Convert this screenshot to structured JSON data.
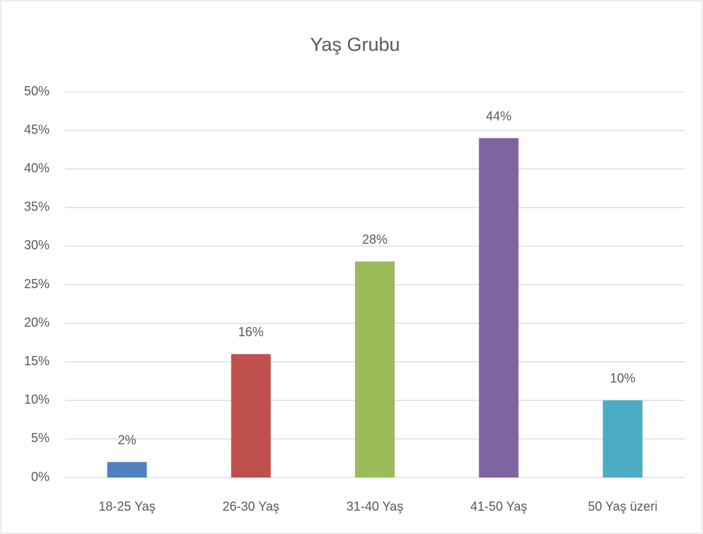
{
  "chart_data": {
    "type": "bar",
    "title": "Yaş Grubu",
    "categories": [
      "18-25 Yaş",
      "26-30 Yaş",
      "31-40 Yaş",
      "41-50 Yaş",
      "50 Yaş üzeri"
    ],
    "values": [
      2,
      16,
      28,
      44,
      10
    ],
    "value_labels": [
      "2%",
      "16%",
      "28%",
      "44%",
      "10%"
    ],
    "colors": [
      "#4f81bd",
      "#c0504d",
      "#9bbb59",
      "#8064a2",
      "#4bacc6"
    ],
    "ylim": [
      0,
      50
    ],
    "yticks": [
      {
        "value": 0,
        "label": "0%"
      },
      {
        "value": 5,
        "label": "5%"
      },
      {
        "value": 10,
        "label": "10%"
      },
      {
        "value": 15,
        "label": "15%"
      },
      {
        "value": 20,
        "label": "20%"
      },
      {
        "value": 25,
        "label": "25%"
      },
      {
        "value": 30,
        "label": "30%"
      },
      {
        "value": 35,
        "label": "35%"
      },
      {
        "value": 40,
        "label": "40%"
      },
      {
        "value": 45,
        "label": "45%"
      },
      {
        "value": 50,
        "label": "50%"
      }
    ],
    "grid": true
  }
}
